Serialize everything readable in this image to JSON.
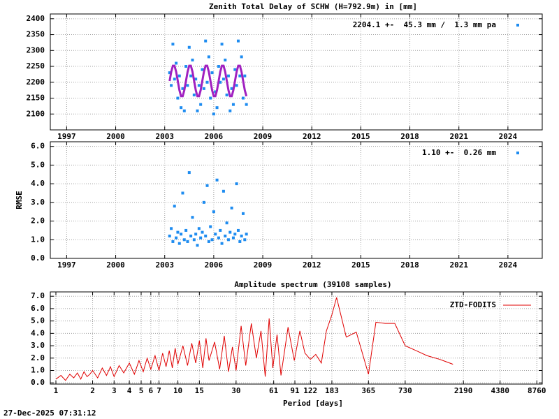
{
  "chart_data": [
    {
      "type": "scatter",
      "title": "Zenith Total Delay of SCHW (H=792.9m) in [mm]",
      "annotation": "2204.1 +-  45.3 mm /  1.3 mm pa",
      "xlim": [
        1996,
        2026.1
      ],
      "xticks": [
        1997,
        2000,
        2003,
        2006,
        2009,
        2012,
        2015,
        2018,
        2021,
        2024
      ],
      "ylim": [
        2050,
        2415
      ],
      "yticks": [
        2100,
        2150,
        2200,
        2250,
        2300,
        2350,
        2400
      ],
      "grid": true,
      "x": [
        2003.3,
        2003.4,
        2003.5,
        2003.6,
        2003.7,
        2003.8,
        2003.9,
        2004.0,
        2004.1,
        2004.2,
        2004.3,
        2004.4,
        2004.5,
        2004.6,
        2004.7,
        2004.8,
        2004.9,
        2005.0,
        2005.1,
        2005.2,
        2005.3,
        2005.4,
        2005.5,
        2005.6,
        2005.7,
        2005.8,
        2005.9,
        2006.0,
        2006.1,
        2006.2,
        2006.3,
        2006.4,
        2006.5,
        2006.6,
        2006.7,
        2006.8,
        2006.9,
        2007.0,
        2007.1,
        2007.2,
        2007.3,
        2007.4,
        2007.5,
        2007.6,
        2007.7,
        2007.8,
        2007.9,
        2008.0
      ],
      "series": [
        {
          "color": "#1e8cf0",
          "type": "scatter",
          "values": [
            2230,
            2190,
            2320,
            2210,
            2260,
            2150,
            2220,
            2120,
            2180,
            2110,
            2250,
            2190,
            2310,
            2220,
            2270,
            2160,
            2210,
            2110,
            2190,
            2130,
            2240,
            2180,
            2330,
            2200,
            2280,
            2150,
            2230,
            2100,
            2170,
            2120,
            2250,
            2200,
            2320,
            2210,
            2270,
            2160,
            2220,
            2110,
            2180,
            2130,
            2240,
            2190,
            2330,
            2220,
            2280,
            2150,
            2220,
            2130
          ]
        },
        {
          "color": "#a020c0",
          "type": "line",
          "values": [
            2204,
            2233,
            2252,
            2252,
            2233,
            2204,
            2175,
            2156,
            2156,
            2175,
            2204,
            2233,
            2252,
            2252,
            2233,
            2204,
            2175,
            2156,
            2156,
            2175,
            2204,
            2233,
            2252,
            2252,
            2233,
            2204,
            2175,
            2156,
            2156,
            2175,
            2204,
            2233,
            2252,
            2252,
            2233,
            2204,
            2175,
            2156,
            2156,
            2175,
            2204,
            2233,
            2252,
            2252,
            2233,
            2204,
            2175,
            2156
          ]
        }
      ]
    },
    {
      "type": "scatter",
      "ylabel": "RMSE",
      "annotation": "1.10 +-  0.26 mm",
      "xlim": [
        1996,
        2026.1
      ],
      "xticks": [
        1997,
        2000,
        2003,
        2006,
        2009,
        2012,
        2015,
        2018,
        2021,
        2024
      ],
      "ylim": [
        0,
        6.25
      ],
      "yticks": [
        {
          "value": 0,
          "label": "0.0"
        },
        {
          "value": 1,
          "label": "1.0"
        },
        {
          "value": 2,
          "label": "2.0"
        },
        {
          "value": 3,
          "label": "3.0"
        },
        {
          "value": 4,
          "label": "4.0"
        },
        {
          "value": 5,
          "label": "5.0"
        },
        {
          "value": 6,
          "label": "6.0"
        }
      ],
      "grid": true,
      "x": [
        2003.3,
        2003.4,
        2003.5,
        2003.6,
        2003.7,
        2003.8,
        2003.9,
        2004.0,
        2004.1,
        2004.2,
        2004.3,
        2004.4,
        2004.5,
        2004.6,
        2004.7,
        2004.8,
        2004.9,
        2005.0,
        2005.1,
        2005.2,
        2005.3,
        2005.4,
        2005.5,
        2005.6,
        2005.7,
        2005.8,
        2005.9,
        2006.0,
        2006.1,
        2006.2,
        2006.3,
        2006.4,
        2006.5,
        2006.6,
        2006.7,
        2006.8,
        2006.9,
        2007.0,
        2007.1,
        2007.2,
        2007.3,
        2007.4,
        2007.5,
        2007.6,
        2007.7,
        2007.8,
        2007.9,
        2008.0
      ],
      "series": [
        {
          "color": "#1e8cf0",
          "type": "scatter",
          "values": [
            1.2,
            1.6,
            0.9,
            2.8,
            1.1,
            1.4,
            0.8,
            1.3,
            3.5,
            1.0,
            1.5,
            0.9,
            4.6,
            1.2,
            2.2,
            1.0,
            1.3,
            0.7,
            1.6,
            1.1,
            1.4,
            3.0,
            1.2,
            3.9,
            0.9,
            1.7,
            1.0,
            2.5,
            1.3,
            4.2,
            1.1,
            1.5,
            0.8,
            3.6,
            1.2,
            1.9,
            1.0,
            1.4,
            2.7,
            1.1,
            1.3,
            4.0,
            1.5,
            0.9,
            1.2,
            2.4,
            1.0,
            1.3
          ]
        }
      ]
    },
    {
      "type": "line",
      "title": "Amplitude spectrum (39108 samples)",
      "xlabel": "Period [days]",
      "xlog": true,
      "xlim": [
        0.9,
        9700
      ],
      "xticks": [
        1,
        2,
        3,
        4,
        5,
        6,
        7,
        10,
        15,
        30,
        61,
        91,
        122,
        183,
        365,
        730,
        2190,
        4380,
        8760
      ],
      "ylim": [
        -0.1,
        7.35
      ],
      "yticks": [
        {
          "value": 0,
          "label": "0.0"
        },
        {
          "value": 1,
          "label": "1.0"
        },
        {
          "value": 2,
          "label": "2.0"
        },
        {
          "value": 3,
          "label": "3.0"
        },
        {
          "value": 4,
          "label": "4.0"
        },
        {
          "value": 5,
          "label": "5.0"
        },
        {
          "value": 6,
          "label": "6.0"
        },
        {
          "value": 7,
          "label": "7.0"
        }
      ],
      "grid": true,
      "x": [
        1,
        1.1,
        1.2,
        1.3,
        1.4,
        1.5,
        1.6,
        1.7,
        1.8,
        1.9,
        2,
        2.2,
        2.4,
        2.6,
        2.8,
        3,
        3.3,
        3.6,
        4,
        4.4,
        4.8,
        5.2,
        5.6,
        6,
        6.5,
        7,
        7.5,
        8,
        8.5,
        9,
        9.5,
        10,
        11,
        12,
        13,
        14,
        15,
        16,
        17,
        18,
        20,
        22,
        24,
        26,
        28,
        30,
        33,
        36,
        40,
        44,
        48,
        52,
        56,
        60,
        65,
        70,
        80,
        90,
        100,
        110,
        122,
        135,
        150,
        165,
        183,
        200,
        240,
        290,
        365,
        420,
        500,
        600,
        730,
        900,
        1100,
        1400,
        1800
      ],
      "series": [
        {
          "name": "ZTD-FODITS",
          "color": "#e00000",
          "values": [
            0.3,
            0.6,
            0.2,
            0.7,
            0.4,
            0.8,
            0.3,
            0.9,
            0.5,
            0.7,
            1.0,
            0.4,
            1.2,
            0.6,
            1.3,
            0.5,
            1.4,
            0.8,
            1.6,
            0.7,
            1.8,
            0.9,
            2.0,
            1.1,
            2.2,
            1.0,
            2.4,
            1.3,
            2.6,
            1.2,
            2.8,
            1.5,
            3.0,
            1.4,
            3.2,
            1.6,
            3.4,
            1.2,
            3.6,
            1.8,
            3.3,
            1.1,
            3.8,
            0.9,
            2.9,
            1.0,
            4.6,
            1.4,
            4.8,
            2.0,
            4.2,
            0.5,
            5.2,
            1.2,
            3.9,
            0.6,
            4.5,
            1.8,
            4.2,
            2.4,
            1.9,
            2.3,
            1.6,
            4.2,
            5.5,
            6.9,
            3.7,
            4.1,
            0.7,
            4.9,
            4.8,
            4.8,
            3.0,
            2.6,
            2.2,
            1.9,
            1.5
          ]
        }
      ]
    }
  ],
  "footer": "27-Dec-2025 07:31:12"
}
